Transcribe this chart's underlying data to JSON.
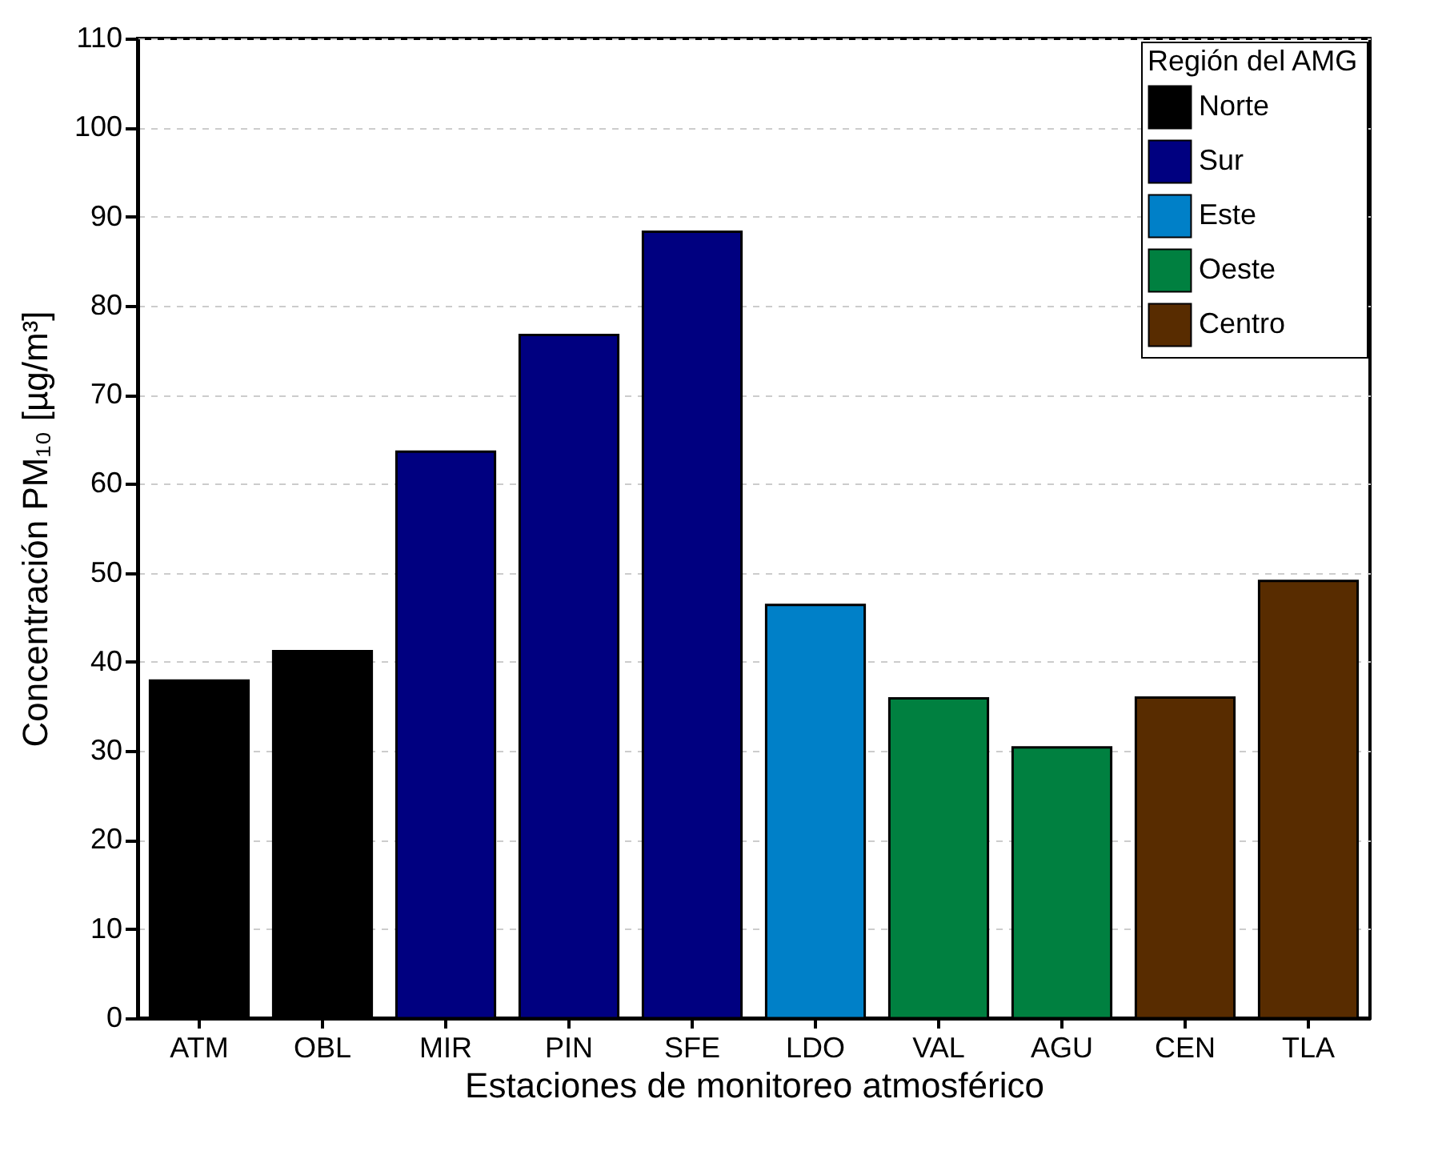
{
  "chart_data": {
    "type": "bar",
    "xlabel": "Estaciones de monitoreo atmosférico",
    "ylabel": "Concentración PM₁₀  [µg/m³]",
    "legend_title": "Región del AMG",
    "categories": [
      "ATM",
      "OBL",
      "MIR",
      "PIN",
      "SFE",
      "LDO",
      "VAL",
      "AGU",
      "CEN",
      "TLA"
    ],
    "series": [
      {
        "name": "Norte",
        "color": "#000000",
        "values": [
          37.9,
          41.2,
          null,
          null,
          null,
          null,
          null,
          null,
          null,
          null
        ]
      },
      {
        "name": "Sur",
        "color": "#000080",
        "values": [
          null,
          null,
          63.6,
          76.7,
          88.3,
          null,
          null,
          null,
          null,
          null
        ]
      },
      {
        "name": "Este",
        "color": "#0080c8",
        "values": [
          null,
          null,
          null,
          null,
          null,
          46.4,
          null,
          null,
          null,
          null
        ]
      },
      {
        "name": "Oeste",
        "color": "#008040",
        "values": [
          null,
          null,
          null,
          null,
          null,
          null,
          35.9,
          30.4,
          null,
          null
        ]
      },
      {
        "name": "Centro",
        "color": "#582c00",
        "values": [
          null,
          null,
          null,
          null,
          null,
          null,
          null,
          null,
          36.0,
          49.1
        ]
      }
    ],
    "ylim": [
      0,
      110
    ],
    "yticks": [
      0,
      10,
      20,
      30,
      40,
      50,
      60,
      70,
      80,
      90,
      100,
      110
    ],
    "grid": "y",
    "legend": "top right"
  }
}
